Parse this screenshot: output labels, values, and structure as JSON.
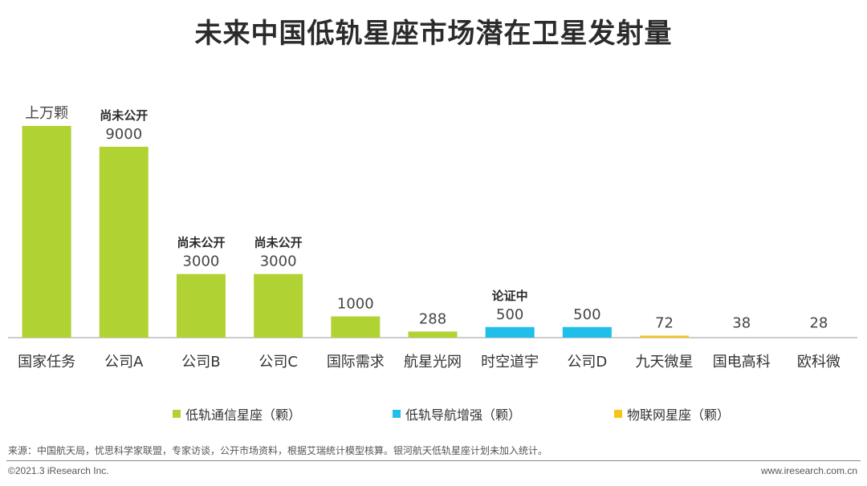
{
  "title": "未来中国低轨星座市场潜在卫星发射量",
  "chart_data": {
    "type": "bar",
    "categories": [
      "国家任务",
      "公司A",
      "公司B",
      "公司C",
      "国际需求",
      "航星光网",
      "时空道宇",
      "公司D",
      "九天微星",
      "国电高科",
      "欧科微"
    ],
    "values": [
      null,
      9000,
      3000,
      3000,
      1000,
      288,
      500,
      500,
      72,
      38,
      28
    ],
    "value_labels": [
      "上万颗",
      "9000",
      "3000",
      "3000",
      "1000",
      "288",
      "500",
      "500",
      "72",
      "38",
      "28"
    ],
    "notes": [
      "",
      "尚未公开",
      "尚未公开",
      "尚未公开",
      "",
      "",
      "论证中",
      "",
      "",
      "",
      ""
    ],
    "series_index": [
      0,
      0,
      0,
      0,
      0,
      0,
      1,
      1,
      2,
      2,
      2
    ],
    "series": [
      {
        "name": "低轨通信星座（颗）",
        "color": "#b1d233"
      },
      {
        "name": "低轨导航增强（颗）",
        "color": "#1fbfe9"
      },
      {
        "name": "物联网星座（颗）",
        "color": "#f5c518"
      }
    ],
    "xlabel": "",
    "ylabel": "",
    "grid": false,
    "legend_position": "bottom"
  },
  "footer": {
    "source": "来源：中国航天局，忧思科学家联盟，专家访谈，公开市场资料，根据艾瑞统计模型核算。银河航天低轨星座计划未加入统计。",
    "copyright": "©2021.3 iResearch Inc.",
    "website": "www.iresearch.com.cn"
  }
}
